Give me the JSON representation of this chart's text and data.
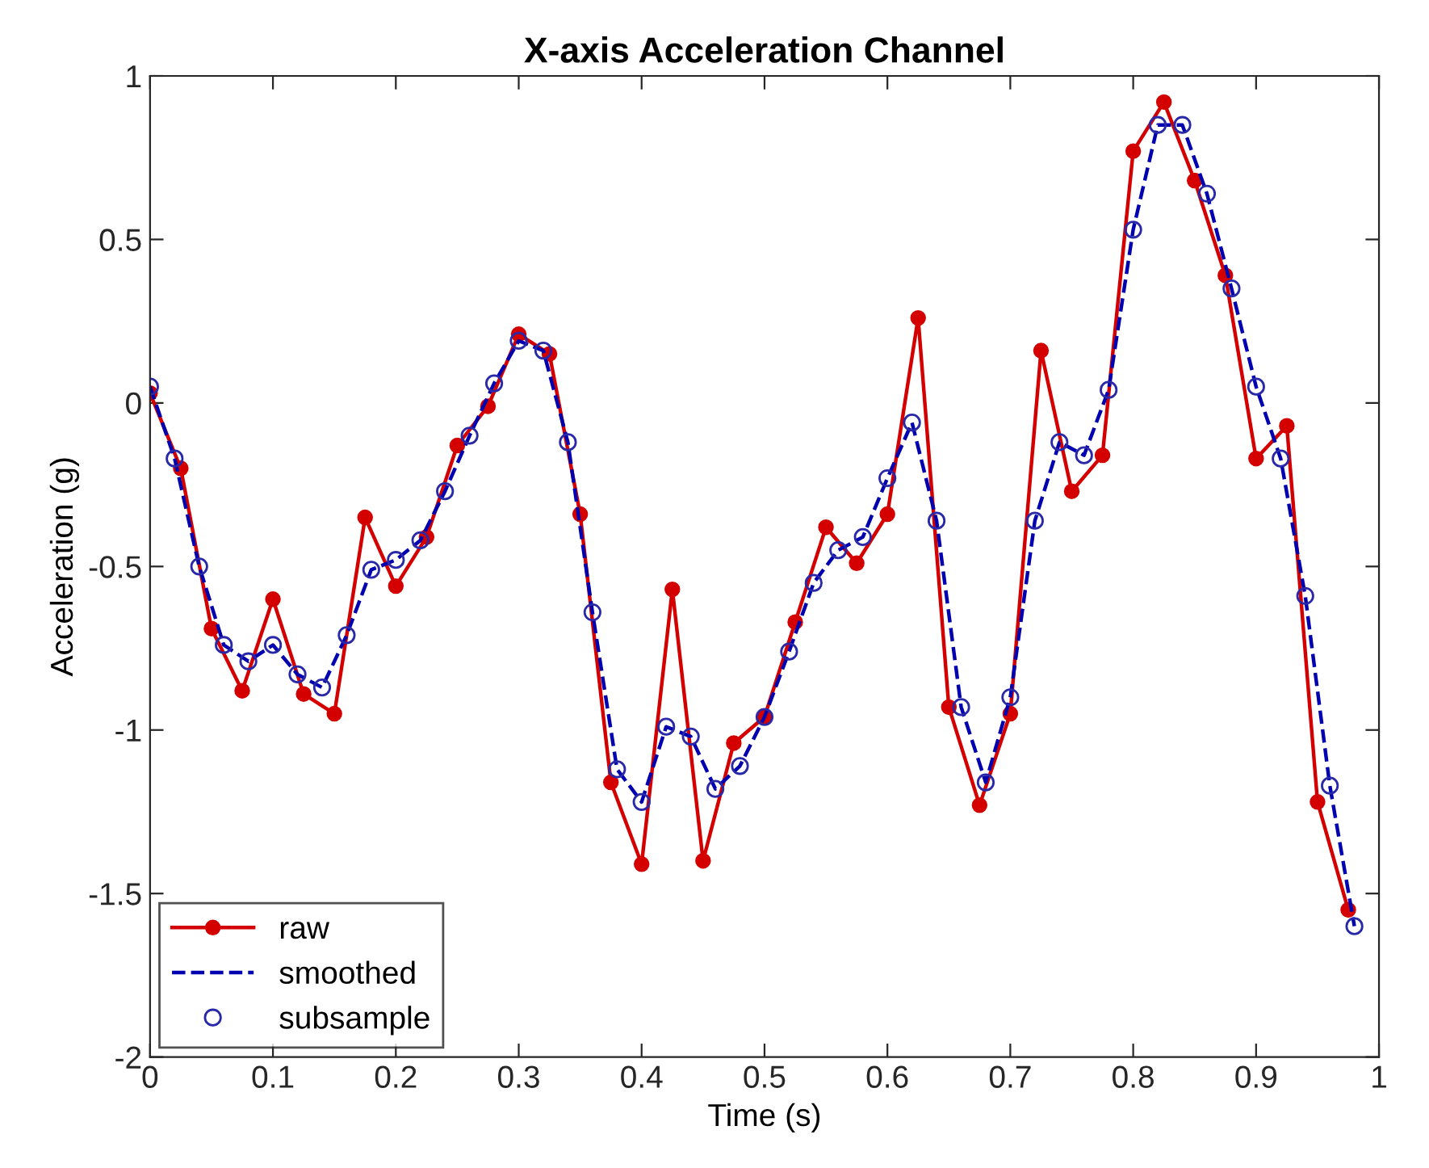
{
  "chart_data": {
    "type": "line",
    "title": "X-axis Acceleration Channel",
    "xlabel": "Time (s)",
    "ylabel": "Acceleration (g)",
    "xlim": [
      0,
      1
    ],
    "xticks": [
      0,
      0.1,
      0.2,
      0.3,
      0.4,
      0.5,
      0.6,
      0.7,
      0.8,
      0.9,
      1
    ],
    "ylim": [
      -2,
      1
    ],
    "yticks": [
      -2,
      -1.5,
      -1,
      -0.5,
      0,
      0.5,
      1
    ],
    "grid": false,
    "legend": "bottom left",
    "series": [
      {
        "name": "raw",
        "marker": "circle",
        "line_style": "solid",
        "color": "#d40000",
        "x": [
          0,
          0.025,
          0.05,
          0.075,
          0.1,
          0.125,
          0.15,
          0.175,
          0.2,
          0.225,
          0.25,
          0.275,
          0.3,
          0.325,
          0.35,
          0.375,
          0.4,
          0.425,
          0.45,
          0.475,
          0.5,
          0.525,
          0.55,
          0.575,
          0.6,
          0.625,
          0.65,
          0.675,
          0.7,
          0.725,
          0.75,
          0.775,
          0.8,
          0.825,
          0.85,
          0.875,
          0.9,
          0.925,
          0.95,
          0.975
        ],
        "values": [
          0.03,
          -0.2,
          -0.69,
          -0.88,
          -0.6,
          -0.89,
          -0.95,
          -0.35,
          -0.56,
          -0.41,
          -0.13,
          -0.01,
          0.21,
          0.15,
          -0.34,
          -1.16,
          -1.41,
          -0.57,
          -1.4,
          -1.04,
          -0.96,
          -0.67,
          -0.38,
          -0.49,
          -0.34,
          0.26,
          -0.93,
          -1.23,
          -0.95,
          0.16,
          -0.27,
          -0.16,
          0.77,
          0.92,
          0.68,
          0.39,
          -0.17,
          -0.07,
          -1.22,
          -1.55
        ]
      },
      {
        "name": "smoothed",
        "marker": "none",
        "line_style": "dashed",
        "color": "#0000b0",
        "x": [
          0,
          0.02,
          0.04,
          0.06,
          0.08,
          0.1,
          0.12,
          0.14,
          0.16,
          0.18,
          0.2,
          0.22,
          0.24,
          0.26,
          0.28,
          0.3,
          0.32,
          0.34,
          0.36,
          0.38,
          0.4,
          0.42,
          0.44,
          0.46,
          0.48,
          0.5,
          0.52,
          0.54,
          0.56,
          0.58,
          0.6,
          0.62,
          0.64,
          0.66,
          0.68,
          0.7,
          0.72,
          0.74,
          0.76,
          0.78,
          0.8,
          0.82,
          0.84,
          0.86,
          0.88,
          0.9,
          0.92,
          0.94,
          0.96,
          0.98
        ],
        "values": [
          0.05,
          -0.17,
          -0.5,
          -0.74,
          -0.79,
          -0.74,
          -0.83,
          -0.87,
          -0.71,
          -0.51,
          -0.48,
          -0.42,
          -0.27,
          -0.1,
          0.06,
          0.19,
          0.16,
          -0.12,
          -0.64,
          -1.12,
          -1.22,
          -0.99,
          -1.02,
          -1.18,
          -1.11,
          -0.96,
          -0.76,
          -0.55,
          -0.45,
          -0.41,
          -0.23,
          -0.06,
          -0.36,
          -0.93,
          -1.16,
          -0.9,
          -0.36,
          -0.12,
          -0.16,
          0.04,
          0.53,
          0.85,
          0.85,
          0.64,
          0.35,
          0.05,
          -0.17,
          -0.59,
          -1.17,
          -1.6
        ]
      },
      {
        "name": "subsample",
        "type": "scatter",
        "marker": "circle",
        "color": "#2828a8",
        "x": [
          0,
          0.02,
          0.04,
          0.06,
          0.08,
          0.1,
          0.12,
          0.14,
          0.16,
          0.18,
          0.2,
          0.22,
          0.24,
          0.26,
          0.28,
          0.3,
          0.32,
          0.34,
          0.36,
          0.38,
          0.4,
          0.42,
          0.44,
          0.46,
          0.48,
          0.5,
          0.52,
          0.54,
          0.56,
          0.58,
          0.6,
          0.62,
          0.64,
          0.66,
          0.68,
          0.7,
          0.72,
          0.74,
          0.76,
          0.78,
          0.8,
          0.82,
          0.84,
          0.86,
          0.88,
          0.9,
          0.92,
          0.94,
          0.96,
          0.98
        ],
        "values": [
          0.05,
          -0.17,
          -0.5,
          -0.74,
          -0.79,
          -0.74,
          -0.83,
          -0.87,
          -0.71,
          -0.51,
          -0.48,
          -0.42,
          -0.27,
          -0.1,
          0.06,
          0.19,
          0.16,
          -0.12,
          -0.64,
          -1.12,
          -1.22,
          -0.99,
          -1.02,
          -1.18,
          -1.11,
          -0.96,
          -0.76,
          -0.55,
          -0.45,
          -0.41,
          -0.23,
          -0.06,
          -0.36,
          -0.93,
          -1.16,
          -0.9,
          -0.36,
          -0.12,
          -0.16,
          0.04,
          0.53,
          0.85,
          0.85,
          0.64,
          0.35,
          0.05,
          -0.17,
          -0.59,
          -1.17,
          -1.6
        ]
      }
    ]
  }
}
